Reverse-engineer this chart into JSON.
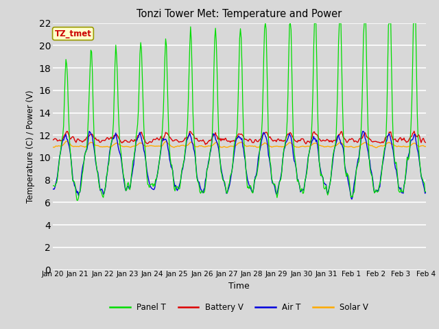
{
  "title": "Tonzi Tower Met: Temperature and Power",
  "xlabel": "Time",
  "ylabel": "Temperature (C) / Power (V)",
  "label_text": "TZ_tmet",
  "ylim": [
    0,
    22
  ],
  "yticks": [
    0,
    2,
    4,
    6,
    8,
    10,
    12,
    14,
    16,
    18,
    20,
    22
  ],
  "xtick_labels": [
    "Jan 20",
    "Jan 21",
    "Jan 22",
    "Jan 23",
    "Jan 24",
    "Jan 25",
    "Jan 26",
    "Jan 27",
    "Jan 28",
    "Jan 29",
    "Jan 30",
    "Jan 31",
    "Feb 1",
    "Feb 2",
    "Feb 3",
    "Feb 4"
  ],
  "background_color": "#d8d8d8",
  "plot_bg_color": "#d8d8d8",
  "grid_color": "#ffffff",
  "colors": {
    "panel_t": "#00dd00",
    "battery_v": "#dd0000",
    "air_t": "#0000dd",
    "solar_v": "#ffaa00"
  },
  "legend_labels": [
    "Panel T",
    "Battery V",
    "Air T",
    "Solar V"
  ],
  "n_points": 480,
  "n_days": 15
}
